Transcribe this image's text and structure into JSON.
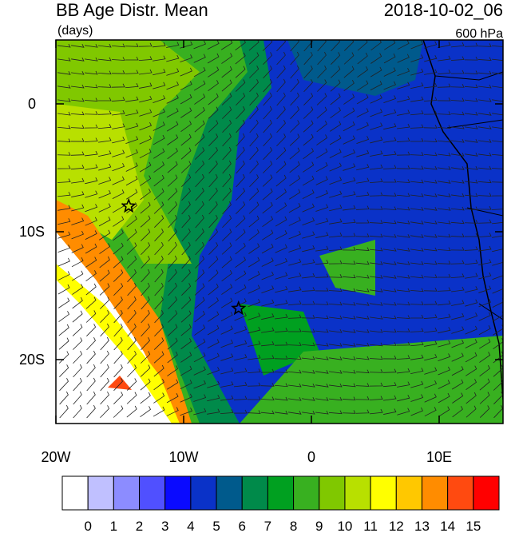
{
  "chart_data": {
    "type": "map",
    "title": "BB Age Distr. Mean",
    "units": "(days)",
    "time": "2018-10-02_06",
    "level": "600 hPa",
    "xlim": [
      -20,
      15
    ],
    "ylim": [
      -25,
      5
    ],
    "xticks": [
      {
        "value": -20,
        "label": "20W"
      },
      {
        "value": -10,
        "label": "10W"
      },
      0,
      {
        "value": 10,
        "label": "10E"
      }
    ],
    "yticks": [
      0,
      {
        "value": -10,
        "label": "10S"
      },
      {
        "value": -20,
        "label": "20S"
      }
    ],
    "colorbar": {
      "levels": [
        0,
        1,
        2,
        3,
        4,
        5,
        6,
        7,
        8,
        9,
        10,
        11,
        12,
        13,
        14,
        15
      ],
      "colors": [
        "#ffffff",
        "#c0c0ff",
        "#8c8cff",
        "#5050ff",
        "#0a0aff",
        "#0a32c8",
        "#005a8c",
        "#008a4a",
        "#00a020",
        "#38b020",
        "#80c800",
        "#b8e000",
        "#ffff00",
        "#ffc800",
        "#ff8c00",
        "#ff4a10",
        "#ff0000"
      ]
    },
    "stars": [
      {
        "lon": -14.3,
        "lat": -8.0
      },
      {
        "lon": -5.7,
        "lat": -16.0
      }
    ]
  }
}
